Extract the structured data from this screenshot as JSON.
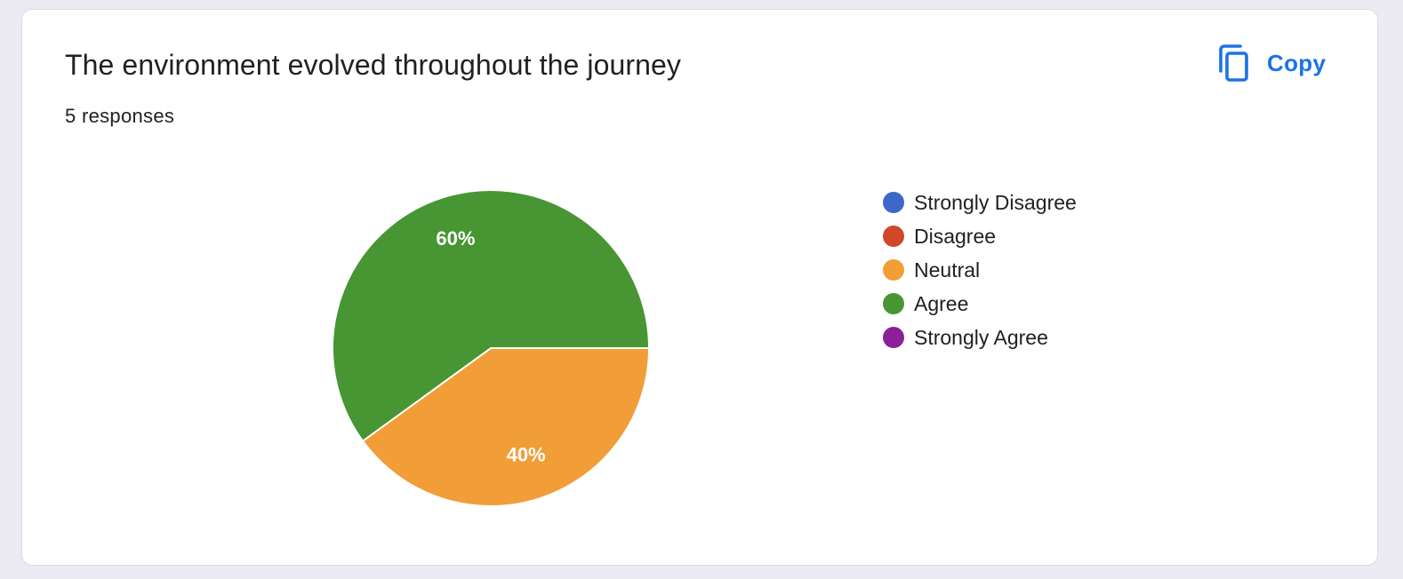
{
  "card": {
    "title": "The environment evolved throughout the journey",
    "responses_label": "5 responses",
    "copy_label": "Copy",
    "copy_icon": "copy-icon",
    "accent_color": "#1a73e8"
  },
  "chart_data": {
    "type": "pie",
    "title": "",
    "categories": [
      "Strongly Disagree",
      "Disagree",
      "Neutral",
      "Agree",
      "Strongly Agree"
    ],
    "values": [
      0,
      0,
      2,
      3,
      0
    ],
    "percent_labels": [
      "",
      "",
      "40%",
      "60%",
      ""
    ],
    "colors": [
      "#3f67c8",
      "#d1472c",
      "#f19e38",
      "#479633",
      "#8b2199"
    ],
    "legend_position": "right",
    "start_angle_deg": 90,
    "direction": "clockwise"
  }
}
